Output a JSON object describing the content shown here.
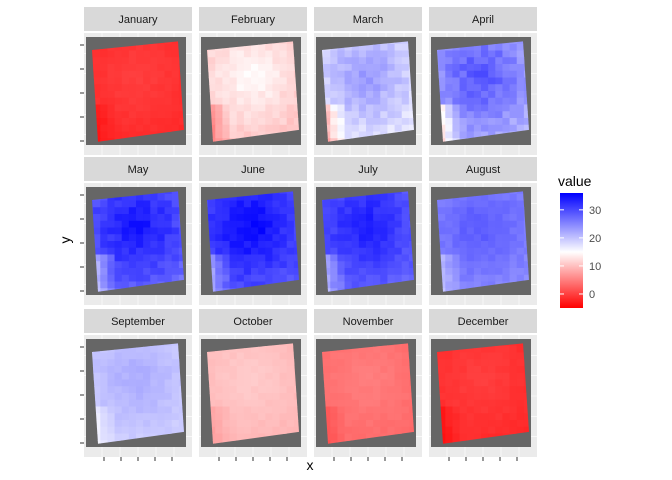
{
  "chart_data": {
    "type": "heatmap",
    "subtype": "faceted-raster",
    "facet_by": "month",
    "xlabel": "x",
    "ylabel": "y",
    "x_tick_labels_visible": false,
    "y_tick_labels_visible": false,
    "panel_background": "#ebebeb",
    "na_color": "#666666",
    "layout": {
      "rows": 3,
      "cols": 4
    },
    "legend": {
      "title": "value",
      "position": "right",
      "range": [
        -5,
        36
      ],
      "breaks": [
        0,
        10,
        20,
        30
      ],
      "low_color": "#ff0000",
      "mid_color": "#ffffff",
      "high_color": "#0000ff",
      "midpoint": 15
    },
    "facets": [
      {
        "label": "January",
        "mean_value": -2,
        "min_value": -4,
        "max_value": 0
      },
      {
        "label": "February",
        "mean_value": 11,
        "min_value": 4,
        "max_value": 15
      },
      {
        "label": "March",
        "mean_value": 20,
        "min_value": 7,
        "max_value": 24
      },
      {
        "label": "April",
        "mean_value": 24,
        "min_value": 10,
        "max_value": 30
      },
      {
        "label": "May",
        "mean_value": 30,
        "min_value": 18,
        "max_value": 35
      },
      {
        "label": "June",
        "mean_value": 31,
        "min_value": 20,
        "max_value": 36
      },
      {
        "label": "July",
        "mean_value": 29,
        "min_value": 20,
        "max_value": 34
      },
      {
        "label": "August",
        "mean_value": 25,
        "min_value": 19,
        "max_value": 29
      },
      {
        "label": "September",
        "mean_value": 19,
        "min_value": 15,
        "max_value": 22
      },
      {
        "label": "October",
        "mean_value": 9,
        "min_value": 7,
        "max_value": 11
      },
      {
        "label": "November",
        "mean_value": 3,
        "min_value": 1,
        "max_value": 5
      },
      {
        "label": "December",
        "mean_value": -2,
        "min_value": -4,
        "max_value": 0
      }
    ]
  }
}
